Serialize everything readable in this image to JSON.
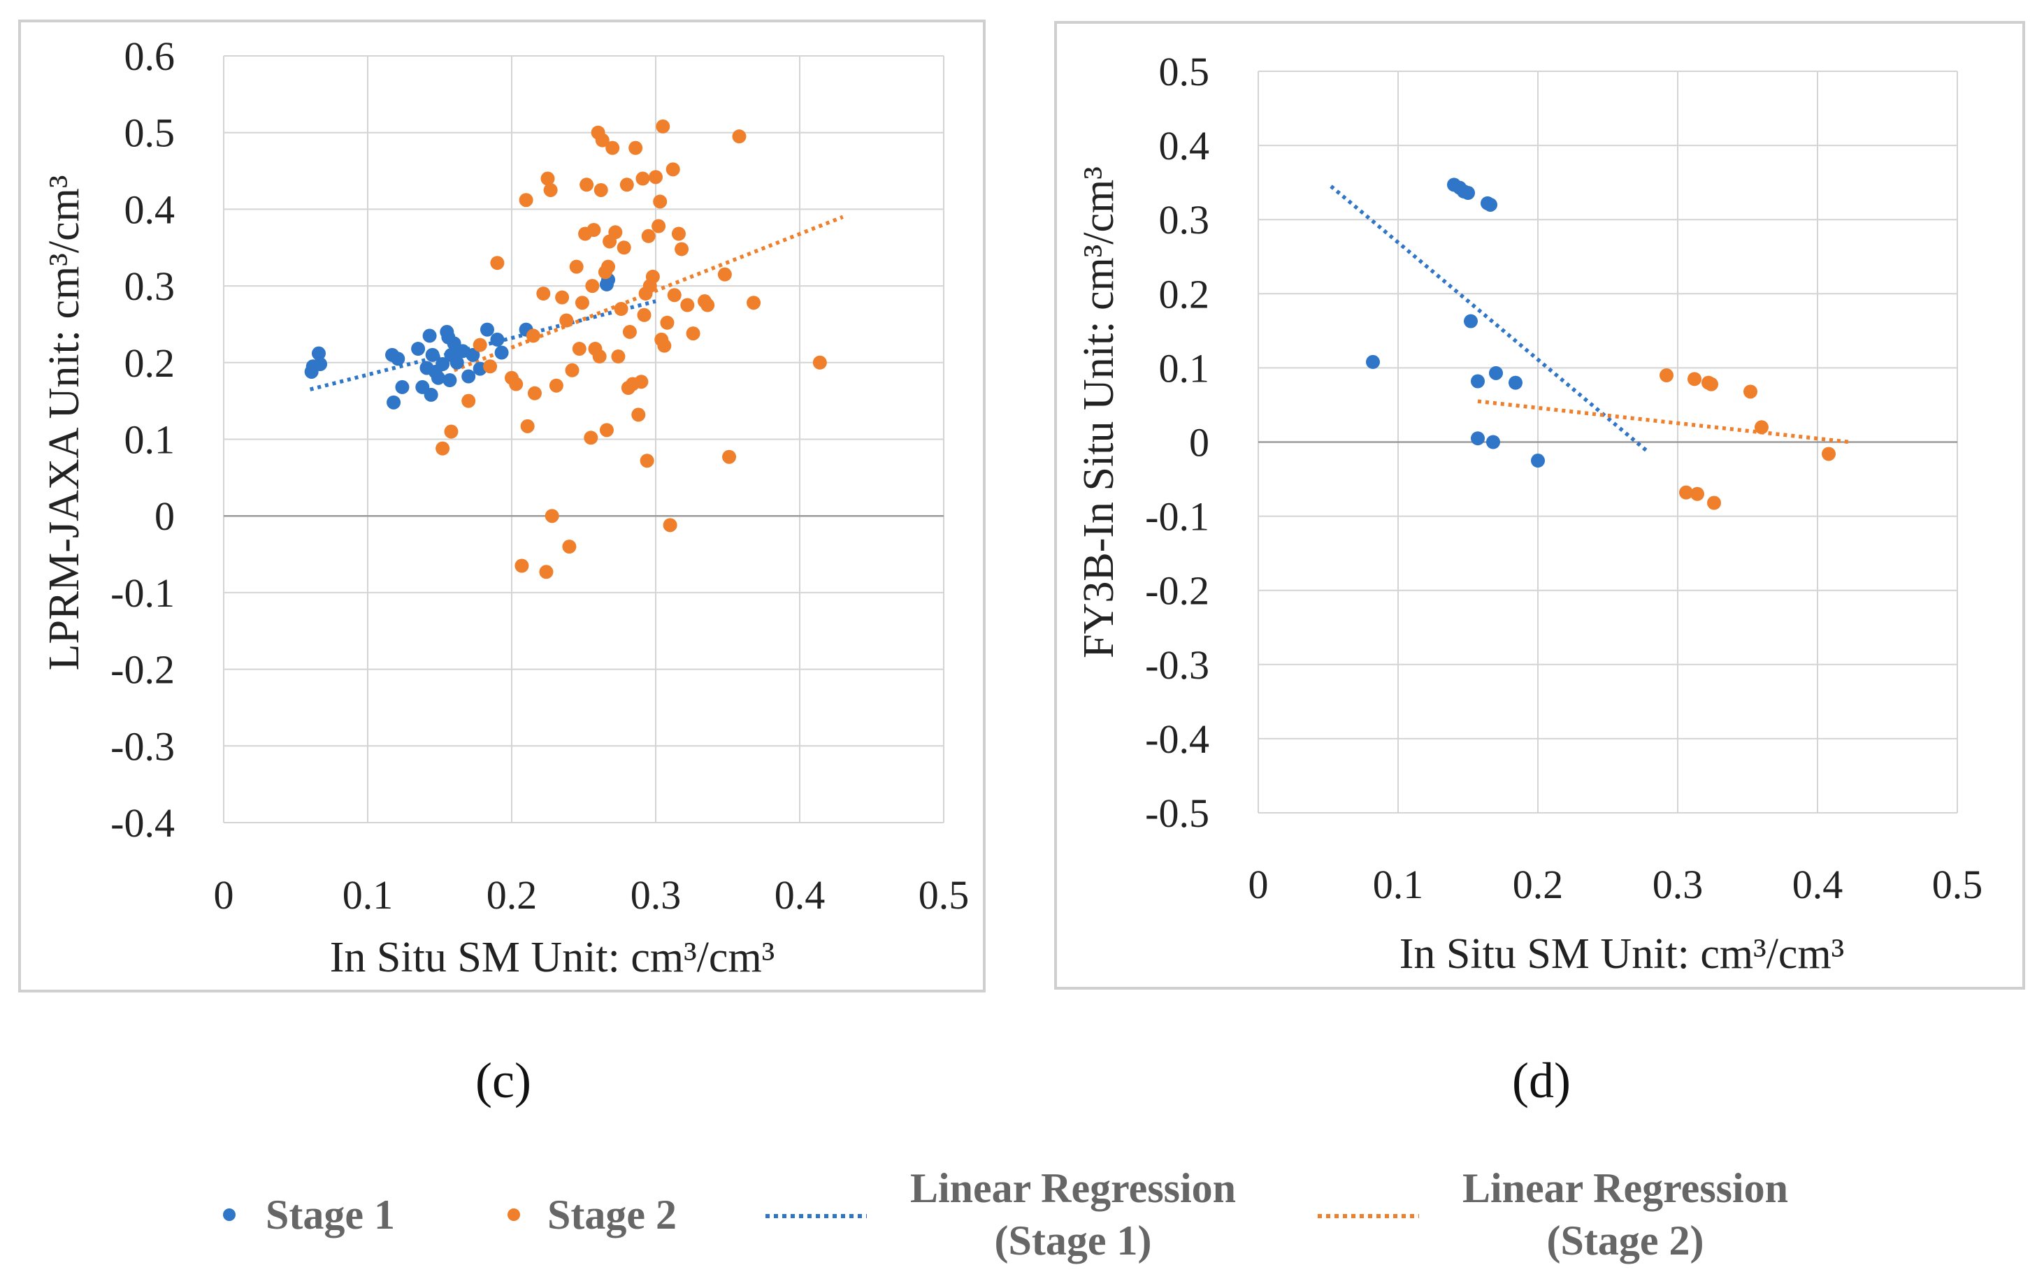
{
  "colors": {
    "stage1": "#2f75c8",
    "stage2": "#f07f2c",
    "grid": "#d4d4d4",
    "frame": "#cfcfcf",
    "text": "#222222"
  },
  "legend": {
    "stage1": "Stage 1",
    "stage2": "Stage 2",
    "reg1_line1": "Linear Regression",
    "reg1_line2": "(Stage 1)",
    "reg2_line1": "Linear Regression",
    "reg2_line2": "(Stage 2)"
  },
  "chart_data": [
    {
      "id": "c",
      "type": "scatter",
      "panel_label": "(c)",
      "xlabel": "In Situ SM   Unit: cm³/cm³",
      "ylabel": "LPRM-JAXA   Unit: cm³/cm³",
      "xlim": [
        0,
        0.5
      ],
      "ylim": [
        -0.4,
        0.6
      ],
      "xticks": [
        0,
        0.1,
        0.2,
        0.3,
        0.4,
        0.5
      ],
      "yticks": [
        0.6,
        0.5,
        0.4,
        0.3,
        0.2,
        0.1,
        0,
        -0.1,
        -0.2,
        -0.3,
        -0.4
      ],
      "xtick_labels": [
        "0",
        "0.1",
        "0.2",
        "0.3",
        "0.4",
        "0.5"
      ],
      "ytick_labels": [
        "0.6",
        "0.5",
        "0.4",
        "0.3",
        "0.2",
        "0.1",
        "0",
        "-0.1",
        "-0.2",
        "-0.3",
        "-0.4"
      ],
      "series": [
        {
          "name": "Stage 1",
          "color_key": "stage1",
          "points": [
            [
              0.061,
              0.188
            ],
            [
              0.062,
              0.195
            ],
            [
              0.066,
              0.212
            ],
            [
              0.067,
              0.198
            ],
            [
              0.117,
              0.21
            ],
            [
              0.118,
              0.148
            ],
            [
              0.121,
              0.205
            ],
            [
              0.124,
              0.168
            ],
            [
              0.135,
              0.218
            ],
            [
              0.138,
              0.168
            ],
            [
              0.141,
              0.193
            ],
            [
              0.143,
              0.235
            ],
            [
              0.144,
              0.158
            ],
            [
              0.145,
              0.21
            ],
            [
              0.147,
              0.188
            ],
            [
              0.149,
              0.18
            ],
            [
              0.152,
              0.198
            ],
            [
              0.155,
              0.24
            ],
            [
              0.156,
              0.233
            ],
            [
              0.157,
              0.177
            ],
            [
              0.158,
              0.21
            ],
            [
              0.16,
              0.225
            ],
            [
              0.162,
              0.2
            ],
            [
              0.166,
              0.215
            ],
            [
              0.17,
              0.182
            ],
            [
              0.173,
              0.21
            ],
            [
              0.178,
              0.192
            ],
            [
              0.183,
              0.243
            ],
            [
              0.19,
              0.23
            ],
            [
              0.193,
              0.213
            ],
            [
              0.21,
              0.243
            ],
            [
              0.266,
              0.302
            ],
            [
              0.267,
              0.308
            ]
          ]
        },
        {
          "name": "Stage 2",
          "color_key": "stage2",
          "points": [
            [
              0.152,
              0.088
            ],
            [
              0.158,
              0.11
            ],
            [
              0.17,
              0.15
            ],
            [
              0.178,
              0.223
            ],
            [
              0.185,
              0.195
            ],
            [
              0.19,
              0.33
            ],
            [
              0.2,
              0.18
            ],
            [
              0.203,
              0.172
            ],
            [
              0.207,
              -0.065
            ],
            [
              0.21,
              0.412
            ],
            [
              0.211,
              0.117
            ],
            [
              0.215,
              0.235
            ],
            [
              0.216,
              0.16
            ],
            [
              0.222,
              0.29
            ],
            [
              0.224,
              -0.073
            ],
            [
              0.225,
              0.44
            ],
            [
              0.227,
              0.425
            ],
            [
              0.228,
              0.0
            ],
            [
              0.231,
              0.17
            ],
            [
              0.235,
              0.285
            ],
            [
              0.238,
              0.255
            ],
            [
              0.24,
              -0.04
            ],
            [
              0.242,
              0.19
            ],
            [
              0.245,
              0.325
            ],
            [
              0.247,
              0.218
            ],
            [
              0.249,
              0.278
            ],
            [
              0.251,
              0.368
            ],
            [
              0.252,
              0.432
            ],
            [
              0.255,
              0.102
            ],
            [
              0.256,
              0.3
            ],
            [
              0.257,
              0.373
            ],
            [
              0.258,
              0.218
            ],
            [
              0.26,
              0.5
            ],
            [
              0.261,
              0.208
            ],
            [
              0.262,
              0.425
            ],
            [
              0.263,
              0.49
            ],
            [
              0.265,
              0.318
            ],
            [
              0.266,
              0.112
            ],
            [
              0.267,
              0.325
            ],
            [
              0.268,
              0.358
            ],
            [
              0.27,
              0.48
            ],
            [
              0.272,
              0.37
            ],
            [
              0.274,
              0.208
            ],
            [
              0.276,
              0.27
            ],
            [
              0.278,
              0.35
            ],
            [
              0.28,
              0.432
            ],
            [
              0.281,
              0.167
            ],
            [
              0.282,
              0.24
            ],
            [
              0.284,
              0.172
            ],
            [
              0.286,
              0.48
            ],
            [
              0.288,
              0.132
            ],
            [
              0.29,
              0.175
            ],
            [
              0.291,
              0.44
            ],
            [
              0.292,
              0.262
            ],
            [
              0.293,
              0.29
            ],
            [
              0.294,
              0.072
            ],
            [
              0.295,
              0.365
            ],
            [
              0.296,
              0.3
            ],
            [
              0.298,
              0.312
            ],
            [
              0.3,
              0.442
            ],
            [
              0.302,
              0.378
            ],
            [
              0.303,
              0.41
            ],
            [
              0.304,
              0.23
            ],
            [
              0.305,
              0.508
            ],
            [
              0.306,
              0.222
            ],
            [
              0.308,
              0.252
            ],
            [
              0.31,
              -0.012
            ],
            [
              0.312,
              0.452
            ],
            [
              0.313,
              0.288
            ],
            [
              0.316,
              0.368
            ],
            [
              0.318,
              0.348
            ],
            [
              0.322,
              0.275
            ],
            [
              0.326,
              0.238
            ],
            [
              0.334,
              0.28
            ],
            [
              0.336,
              0.275
            ],
            [
              0.348,
              0.315
            ],
            [
              0.351,
              0.077
            ],
            [
              0.358,
              0.495
            ],
            [
              0.368,
              0.278
            ],
            [
              0.414,
              0.2
            ]
          ]
        }
      ],
      "regressions": [
        {
          "name": "Linear Regression (Stage 1)",
          "color_key": "stage1",
          "x": [
            0.06,
            0.3
          ],
          "y": [
            0.165,
            0.28
          ]
        },
        {
          "name": "Linear Regression (Stage 2)",
          "color_key": "stage2",
          "x": [
            0.16,
            0.43
          ],
          "y": [
            0.19,
            0.39
          ]
        }
      ]
    },
    {
      "id": "d",
      "type": "scatter",
      "panel_label": "(d)",
      "xlabel": "In Situ SM   Unit: cm³/cm³",
      "ylabel": "FY3B-In Situ   Unit: cm³/cm³",
      "xlim": [
        0,
        0.5
      ],
      "ylim": [
        -0.5,
        0.5
      ],
      "xticks": [
        0,
        0.1,
        0.2,
        0.3,
        0.4,
        0.5
      ],
      "yticks": [
        0.5,
        0.4,
        0.3,
        0.2,
        0.1,
        0,
        -0.1,
        -0.2,
        -0.3,
        -0.4,
        -0.5
      ],
      "xtick_labels": [
        "0",
        "0.1",
        "0.2",
        "0.3",
        "0.4",
        "0.5"
      ],
      "ytick_labels": [
        "0.5",
        "0.4",
        "0.3",
        "0.2",
        "0.1",
        "0",
        "-0.1",
        "-0.2",
        "-0.3",
        "-0.4",
        "-0.5"
      ],
      "series": [
        {
          "name": "Stage 1",
          "color_key": "stage1",
          "points": [
            [
              0.082,
              0.108
            ],
            [
              0.14,
              0.347
            ],
            [
              0.144,
              0.343
            ],
            [
              0.147,
              0.338
            ],
            [
              0.15,
              0.336
            ],
            [
              0.152,
              0.163
            ],
            [
              0.157,
              0.082
            ],
            [
              0.157,
              0.005
            ],
            [
              0.164,
              0.322
            ],
            [
              0.166,
              0.32
            ],
            [
              0.168,
              0.0
            ],
            [
              0.17,
              0.093
            ],
            [
              0.184,
              0.08
            ],
            [
              0.2,
              -0.025
            ]
          ]
        },
        {
          "name": "Stage 2",
          "color_key": "stage2",
          "points": [
            [
              0.292,
              0.09
            ],
            [
              0.306,
              -0.068
            ],
            [
              0.312,
              0.085
            ],
            [
              0.314,
              -0.07
            ],
            [
              0.322,
              0.08
            ],
            [
              0.324,
              0.078
            ],
            [
              0.326,
              -0.082
            ],
            [
              0.352,
              0.068
            ],
            [
              0.36,
              0.02
            ],
            [
              0.408,
              -0.016
            ]
          ]
        }
      ],
      "regressions": [
        {
          "name": "Linear Regression (Stage 1)",
          "color_key": "stage1",
          "x": [
            0.052,
            0.278
          ],
          "y": [
            0.345,
            -0.012
          ]
        },
        {
          "name": "Linear Regression (Stage 2)",
          "color_key": "stage2",
          "x": [
            0.157,
            0.423
          ],
          "y": [
            0.055,
            0.0
          ]
        }
      ]
    }
  ]
}
